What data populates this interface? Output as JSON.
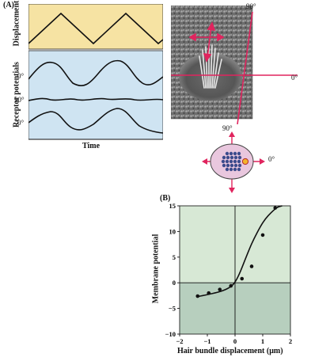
{
  "panel_a": {
    "label": "(A)",
    "displacement_label": "Displacement",
    "receptor_label": "Receptor potentials",
    "time_label": "Time",
    "trace_labels": [
      "0°",
      "90°",
      "0°"
    ],
    "micrograph_labels": {
      "top": "90°",
      "right": "0°"
    },
    "schematic_labels": {
      "top": "90°",
      "right": "0°"
    },
    "colors": {
      "displacement_bg": "#f6e3a3",
      "receptor_bg": "#cfe4f2",
      "arrow": "#e0245e",
      "cell_fill": "#e9c7de",
      "dot": "#3c4b8c",
      "kinocilium": "#f3b32b"
    }
  },
  "panel_b": {
    "label": "(B)",
    "ylabel": "Membrane potential",
    "xlabel": "Hair bundle displacement (μm)",
    "xticks": [
      "−2",
      "−1",
      "0",
      "1",
      "2"
    ],
    "yticks": [
      "15",
      "10",
      "5",
      "0",
      "−5",
      "−10"
    ],
    "colors": {
      "upper_bg": "#d7e8d5",
      "lower_bg": "#b7cfbe"
    }
  },
  "chart_data": {
    "type": "scatter",
    "xlabel": "Hair bundle displacement (μm)",
    "ylabel": "Membrane potential",
    "xlim": [
      -2,
      2
    ],
    "ylim": [
      -10,
      15
    ],
    "points": [
      {
        "x": -1.35,
        "y": -2.6
      },
      {
        "x": -0.95,
        "y": -2.0
      },
      {
        "x": -0.55,
        "y": -1.3
      },
      {
        "x": -0.15,
        "y": -0.6
      },
      {
        "x": 0.25,
        "y": 0.8
      },
      {
        "x": 0.6,
        "y": 3.2
      },
      {
        "x": 1.0,
        "y": 9.3
      },
      {
        "x": 1.45,
        "y": 14.6
      }
    ],
    "fit_curve": [
      {
        "x": -1.35,
        "y": -2.7
      },
      {
        "x": -1.0,
        "y": -2.3
      },
      {
        "x": -0.6,
        "y": -1.8
      },
      {
        "x": -0.3,
        "y": -1.2
      },
      {
        "x": -0.1,
        "y": -0.5
      },
      {
        "x": 0.05,
        "y": 0.6
      },
      {
        "x": 0.2,
        "y": 2.3
      },
      {
        "x": 0.4,
        "y": 5.0
      },
      {
        "x": 0.6,
        "y": 7.6
      },
      {
        "x": 0.8,
        "y": 9.8
      },
      {
        "x": 1.0,
        "y": 11.7
      },
      {
        "x": 1.2,
        "y": 13.1
      },
      {
        "x": 1.5,
        "y": 14.6
      },
      {
        "x": 1.7,
        "y": 15.0
      }
    ]
  }
}
